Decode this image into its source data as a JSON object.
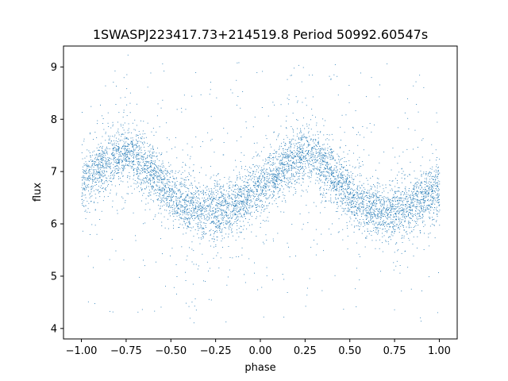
{
  "chart_data": {
    "type": "scatter",
    "title": "1SWASPJ223417.73+214519.8 Period 50992.60547s",
    "xlabel": "phase",
    "ylabel": "flux",
    "xlim": [
      -1.1,
      1.1
    ],
    "ylim": [
      3.8,
      9.4
    ],
    "xticks": [
      -1.0,
      -0.75,
      -0.5,
      -0.25,
      0.0,
      0.25,
      0.5,
      0.75,
      1.0
    ],
    "xtick_labels": [
      "−1.00",
      "−0.75",
      "−0.50",
      "−0.25",
      "0.00",
      "0.25",
      "0.50",
      "0.75",
      "1.00"
    ],
    "yticks": [
      4,
      5,
      6,
      7,
      8,
      9
    ],
    "ytick_labels": [
      "4",
      "5",
      "6",
      "7",
      "8",
      "9"
    ],
    "grid": false,
    "legend": "none",
    "marker_color": "#1f77b4",
    "series": [
      {
        "x_range": [
          -1.0,
          1.0
        ],
        "curve_phase": [
          -1.0,
          -0.9,
          -0.8,
          -0.75,
          -0.7,
          -0.6,
          -0.5,
          -0.4,
          -0.3,
          -0.25,
          -0.2,
          -0.1,
          0.0,
          0.1,
          0.2,
          0.25,
          0.3,
          0.4,
          0.5,
          0.6,
          0.7,
          0.75,
          0.8,
          0.9,
          1.0
        ],
        "curve_flux": [
          6.8,
          7.05,
          7.3,
          7.35,
          7.3,
          6.95,
          6.55,
          6.3,
          6.25,
          6.25,
          6.3,
          6.45,
          6.7,
          7.0,
          7.3,
          7.35,
          7.3,
          6.95,
          6.55,
          6.3,
          6.25,
          6.25,
          6.3,
          6.45,
          6.7
        ],
        "scatter_spread": 0.25,
        "outlier_range": [
          4.1,
          9.1
        ]
      }
    ]
  }
}
